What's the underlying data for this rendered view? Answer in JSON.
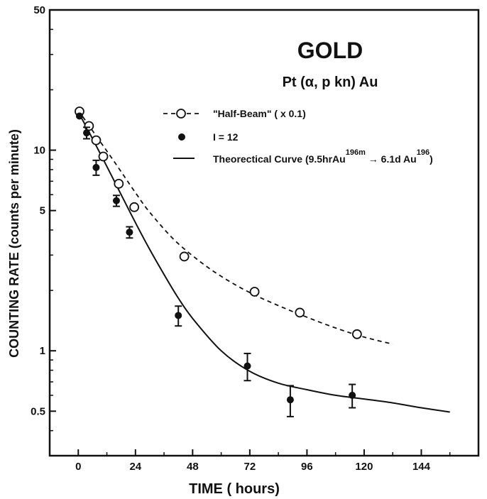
{
  "chart_data": {
    "type": "scatter",
    "title": "GOLD",
    "subtitle": "Pt (α, p kn) Au",
    "xlabel": "TIME ( hours)",
    "ylabel": "COUNTING RATE (counts per minute)",
    "xlim": [
      -12,
      168
    ],
    "ylim": [
      0.3,
      50
    ],
    "yscale": "log",
    "x_ticks": [
      0,
      24,
      48,
      72,
      96,
      120,
      144
    ],
    "y_tick_labels": [
      "50",
      "10",
      "5",
      "1",
      "0.5"
    ],
    "y_ticks": [
      50,
      10,
      5,
      1,
      0.5
    ],
    "grid": false,
    "legend_position": "top-right",
    "series": [
      {
        "name": "\"Half-Beam\" (x 0.1)",
        "style": "open-circle-dashed",
        "x": [
          0.5,
          4.5,
          7.5,
          10.5,
          17,
          23.5,
          44.5,
          74,
          93,
          117
        ],
        "y": [
          15.6,
          13.2,
          11.2,
          9.3,
          6.8,
          5.2,
          2.95,
          1.97,
          1.55,
          1.21
        ],
        "fit": {
          "x": [
            0,
            5,
            10,
            15,
            20,
            25,
            30,
            40,
            50,
            60,
            72,
            84,
            96,
            108,
            120,
            132
          ],
          "y": [
            15.8,
            13.0,
            10.7,
            8.8,
            7.2,
            5.9,
            4.9,
            3.6,
            2.85,
            2.35,
            1.95,
            1.68,
            1.47,
            1.3,
            1.17,
            1.08
          ]
        }
      },
      {
        "name": "I = 12",
        "style": "filled-circle",
        "x": [
          0.5,
          3.5,
          7.5,
          16,
          21.5,
          42,
          71,
          89,
          115
        ],
        "y": [
          14.8,
          12.2,
          8.2,
          5.6,
          3.9,
          1.5,
          0.84,
          0.57,
          0.6
        ],
        "errors": [
          0,
          0.8,
          0.7,
          0.35,
          0.25,
          0.17,
          0.13,
          0.1,
          0.08
        ]
      },
      {
        "name": "Theorectical Curve (9.5hrAu196m → 6.1d Au196)",
        "style": "solid-line",
        "x": [
          0,
          6,
          12,
          18,
          24,
          30,
          36,
          42,
          48,
          60,
          72,
          84,
          96,
          108,
          120,
          132,
          144,
          156
        ],
        "y": [
          15.5,
          11.4,
          8.3,
          6.0,
          4.35,
          3.2,
          2.4,
          1.83,
          1.45,
          1.0,
          0.79,
          0.69,
          0.64,
          0.6,
          0.575,
          0.55,
          0.52,
          0.495
        ]
      }
    ],
    "legend": {
      "half_beam": "\"Half-Beam\" ( x 0.1)",
      "i12": "I  =  12",
      "theory_prefix": "Theorectical  Curve (9.5hrAu",
      "theory_sup1": "196m",
      "theory_mid": "6.1d Au",
      "theory_sup2": "196",
      "theory_suffix": ")"
    }
  }
}
